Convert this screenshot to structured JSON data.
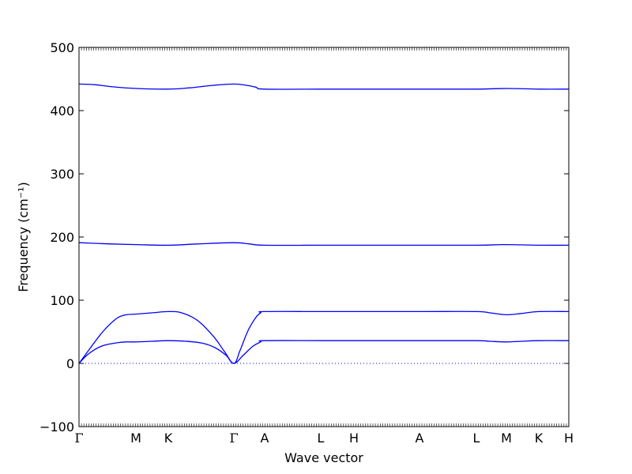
{
  "chart_data": {
    "type": "line",
    "xlabel": "Wave vector",
    "ylabel": "Frequency (cm⁻¹)",
    "ylim": [
      -100,
      500
    ],
    "yticks": [
      -100,
      0,
      100,
      200,
      300,
      400,
      500
    ],
    "ytick_labels": [
      "−100",
      "0",
      "100",
      "200",
      "300",
      "400",
      "500"
    ],
    "x_range": [
      0,
      31
    ],
    "grid": false,
    "zero_line": {
      "y": 0,
      "style": "dotted"
    },
    "line_color": "#0000ff",
    "k_points": [
      {
        "label": "Γ",
        "x": 0
      },
      {
        "label": "M",
        "x": 3.6
      },
      {
        "label": "K",
        "x": 5.65
      },
      {
        "label": "Γ",
        "x": 9.8
      },
      {
        "label": "A",
        "x": 11.75
      },
      {
        "label": "L",
        "x": 15.3
      },
      {
        "label": "H",
        "x": 17.4
      },
      {
        "label": "A",
        "x": 21.55
      },
      {
        "label": "L",
        "x": 25.15
      },
      {
        "label": "M",
        "x": 27.05
      },
      {
        "label": "K",
        "x": 29.1
      },
      {
        "label": "H",
        "x": 31
      }
    ],
    "series": [
      {
        "x": [
          0,
          0.5,
          1.0,
          1.5,
          2.0,
          2.5,
          3.0,
          3.6,
          4.6,
          5.65,
          6.8,
          7.8,
          8.6,
          9.3,
          9.8,
          10.4,
          11.0,
          11.5,
          11.75,
          15.3,
          17.4,
          21.55,
          25.15,
          26.0,
          27.05,
          28.0,
          29.1,
          31
        ],
        "y": [
          0,
          13,
          22,
          28,
          31,
          33,
          34,
          34,
          35,
          36,
          35,
          32,
          25,
          13,
          0,
          13,
          27,
          34,
          36,
          36,
          36,
          36,
          36,
          35,
          34,
          35,
          36,
          36
        ]
      },
      {
        "x": [
          0,
          0.5,
          1.0,
          1.5,
          2.0,
          2.5,
          3.0,
          3.6,
          4.6,
          5.65,
          6.5,
          7.5,
          8.5,
          9.2,
          9.8,
          10.2,
          10.7,
          11.2,
          11.5,
          11.75,
          15.3,
          17.4,
          21.55,
          25.15,
          26.0,
          27.05,
          28.0,
          29.1,
          31
        ],
        "y": [
          0,
          17,
          34,
          50,
          63,
          73,
          77,
          78,
          80,
          82,
          80,
          68,
          43,
          19,
          0,
          21,
          52,
          73,
          80,
          82,
          82,
          82,
          82,
          82,
          80,
          77,
          79,
          82,
          82
        ]
      },
      {
        "x": [
          0,
          1.0,
          2.0,
          3.6,
          5.65,
          7.5,
          9.8,
          10.8,
          11.75,
          15.3,
          17.4,
          21.55,
          25.15,
          27.05,
          29.1,
          31
        ],
        "y": [
          191,
          190,
          189,
          188,
          187,
          189,
          191,
          189,
          187,
          187,
          187,
          187,
          187,
          188,
          187,
          187
        ]
      },
      {
        "x": [
          0,
          1.0,
          2.0,
          3.6,
          5.65,
          7.0,
          8.5,
          9.8,
          10.6,
          11.2,
          11.75,
          15.3,
          17.4,
          21.55,
          25.15,
          27.05,
          29.1,
          31
        ],
        "y": [
          442,
          441,
          438,
          435,
          434,
          436,
          440,
          442,
          440,
          437,
          434,
          434,
          434,
          434,
          434,
          435,
          434,
          434
        ]
      }
    ]
  }
}
